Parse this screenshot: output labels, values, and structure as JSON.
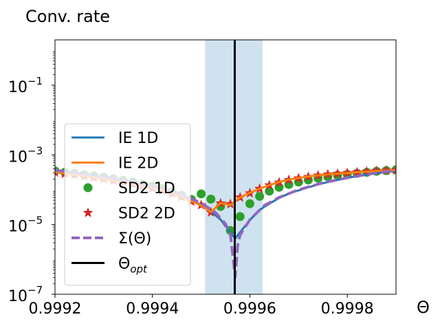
{
  "chart_data": {
    "type": "line",
    "title": "Conv. rate",
    "xlabel": "Θ",
    "ylabel": "",
    "xlim": [
      0.9992,
      0.9999
    ],
    "ylim_log10": [
      -7,
      0.3
    ],
    "yscale": "log",
    "x_ticks": [
      {
        "value": 0.9992,
        "label": "0.9992"
      },
      {
        "value": 0.9994,
        "label": "0.9994"
      },
      {
        "value": 0.9996,
        "label": "0.9996"
      },
      {
        "value": 0.9998,
        "label": "0.9998"
      }
    ],
    "y_ticks": [
      {
        "exp": -1,
        "base": "10",
        "sup": "−1"
      },
      {
        "exp": -3,
        "base": "10",
        "sup": "−3"
      },
      {
        "exp": -5,
        "base": "10",
        "sup": "−5"
      },
      {
        "exp": -7,
        "base": "10",
        "sup": "−7"
      }
    ],
    "shaded_region": {
      "x0": 0.999508,
      "x1": 0.999626,
      "color": "#cfe2ef"
    },
    "vline": {
      "x": 0.999569,
      "color": "#000000"
    },
    "legend": {
      "position": "lower-left",
      "entries": [
        {
          "label": "IE 1D",
          "kind": "line",
          "color": "#1f77b4"
        },
        {
          "label": "IE 2D",
          "kind": "line",
          "color": "#ff7f0e"
        },
        {
          "label": "SD2 1D",
          "kind": "circle",
          "color": "#2ca02c"
        },
        {
          "label": "SD2 2D",
          "kind": "star",
          "color": "#d62728"
        },
        {
          "label": "Σ(Θ)",
          "kind": "dashed",
          "color": "#9467bd"
        },
        {
          "label": "Θopt",
          "base": "Θ",
          "sub": "opt",
          "kind": "line",
          "color": "#000000"
        }
      ]
    },
    "series": [
      {
        "name": "IE 1D",
        "style": "line",
        "color": "#1f77b4",
        "x": [
          0.9992,
          0.99922,
          0.99924,
          0.99926,
          0.99928,
          0.9993,
          0.99932,
          0.99934,
          0.99936,
          0.99938,
          0.9994,
          0.99942,
          0.99944,
          0.99946,
          0.99948,
          0.9995,
          0.99952,
          0.99954,
          0.99956,
          0.99957,
          0.99958,
          0.9996,
          0.99962,
          0.99964,
          0.99966,
          0.99968,
          0.9997,
          0.99972,
          0.99974,
          0.99976,
          0.99978,
          0.9998,
          0.99982,
          0.99984,
          0.99986,
          0.99988,
          0.9999
        ],
        "log10y": [
          -3.45,
          -3.48,
          -3.52,
          -3.55,
          -3.59,
          -3.63,
          -3.67,
          -3.72,
          -3.77,
          -3.83,
          -3.89,
          -3.97,
          -4.05,
          -4.15,
          -4.28,
          -4.44,
          -4.62,
          -4.86,
          -5.23,
          -5.4,
          -5.22,
          -4.87,
          -4.58,
          -4.4,
          -4.24,
          -4.11,
          -4.02,
          -3.93,
          -3.85,
          -3.78,
          -3.72,
          -3.66,
          -3.61,
          -3.57,
          -3.53,
          -3.49,
          -3.46
        ]
      },
      {
        "name": "IE 2D",
        "style": "line",
        "color": "#ff7f0e",
        "x": [
          0.9992,
          0.99922,
          0.99924,
          0.99926,
          0.99928,
          0.9993,
          0.99932,
          0.99934,
          0.99936,
          0.99938,
          0.9994,
          0.99942,
          0.99944,
          0.99946,
          0.99948,
          0.9995,
          0.99952,
          0.99954,
          0.99956,
          0.99958,
          0.9996,
          0.99962,
          0.99964,
          0.99966,
          0.99968,
          0.9997,
          0.99972,
          0.99974,
          0.99976,
          0.99978,
          0.9998,
          0.99982,
          0.99984,
          0.99986,
          0.99988,
          0.9999
        ],
        "log10y": [
          -3.5,
          -3.53,
          -3.57,
          -3.61,
          -3.65,
          -3.69,
          -3.74,
          -3.78,
          -3.83,
          -3.89,
          -3.95,
          -4.02,
          -4.1,
          -4.2,
          -4.33,
          -4.45,
          -4.64,
          -4.38,
          -4.44,
          -4.22,
          -4.09,
          -3.97,
          -3.87,
          -3.78,
          -3.71,
          -3.66,
          -3.62,
          -3.59,
          -3.56,
          -3.54,
          -3.52,
          -3.5,
          -3.48,
          -3.46,
          -3.45,
          -3.44
        ]
      },
      {
        "name": "SD2 1D",
        "style": "circle",
        "color": "#2ca02c",
        "x": [
          0.9992,
          0.99922,
          0.99924,
          0.99926,
          0.99928,
          0.9993,
          0.99932,
          0.99934,
          0.99936,
          0.99938,
          0.9994,
          0.99942,
          0.99944,
          0.99946,
          0.99948,
          0.9995,
          0.99952,
          0.99954,
          0.99956,
          0.99958,
          0.9996,
          0.99962,
          0.99964,
          0.99966,
          0.99968,
          0.9997,
          0.99972,
          0.99974,
          0.99976,
          0.99978,
          0.9998,
          0.99982,
          0.99984,
          0.99986,
          0.99988,
          0.9999
        ],
        "log10y": [
          -3.46,
          -3.5,
          -3.53,
          -3.57,
          -3.6,
          -3.64,
          -3.69,
          -3.73,
          -3.78,
          -3.84,
          -3.9,
          -3.97,
          -4.06,
          -4.16,
          -4.28,
          -4.12,
          -4.27,
          -4.48,
          -5.17,
          -4.77,
          -4.4,
          -4.19,
          -4.04,
          -3.93,
          -3.85,
          -3.78,
          -3.72,
          -3.67,
          -3.63,
          -3.59,
          -3.56,
          -3.53,
          -3.5,
          -3.47,
          -3.45,
          -3.43
        ]
      },
      {
        "name": "SD2 2D",
        "style": "star",
        "color": "#d62728",
        "x": [
          0.9992,
          0.99922,
          0.99924,
          0.99926,
          0.99928,
          0.9993,
          0.99932,
          0.99934,
          0.99936,
          0.99938,
          0.9994,
          0.99942,
          0.99944,
          0.99946,
          0.99948,
          0.9995,
          0.99952,
          0.99954,
          0.99956,
          0.99958,
          0.9996,
          0.99962,
          0.99964,
          0.99966,
          0.99968,
          0.9997,
          0.99972,
          0.99974,
          0.99976,
          0.99978,
          0.9998,
          0.99982,
          0.99984,
          0.99986,
          0.99988,
          0.9999
        ],
        "log10y": [
          -3.5,
          -3.54,
          -3.57,
          -3.61,
          -3.65,
          -3.69,
          -3.74,
          -3.78,
          -3.84,
          -3.89,
          -3.96,
          -4.03,
          -4.11,
          -4.21,
          -4.34,
          -4.44,
          -4.65,
          -4.39,
          -4.41,
          -4.22,
          -4.1,
          -3.97,
          -3.87,
          -3.79,
          -3.72,
          -3.67,
          -3.63,
          -3.59,
          -3.56,
          -3.54,
          -3.52,
          -3.5,
          -3.48,
          -3.46,
          -3.45,
          -3.44
        ]
      },
      {
        "name": "Σ(Θ)",
        "style": "dashed",
        "color": "#9467bd",
        "x": [
          0.9992,
          0.99925,
          0.9993,
          0.99935,
          0.9994,
          0.99945,
          0.9995,
          0.99953,
          0.99955,
          0.99956,
          0.99957,
          0.999575,
          0.99958,
          0.9996,
          0.99963,
          0.99966,
          0.9997,
          0.99975,
          0.9998,
          0.99985,
          0.9999
        ],
        "log10y": [
          -3.44,
          -3.53,
          -3.63,
          -3.75,
          -3.89,
          -4.08,
          -4.38,
          -4.66,
          -4.98,
          -5.28,
          -6.5,
          -5.6,
          -5.3,
          -4.86,
          -4.45,
          -4.22,
          -4.0,
          -3.8,
          -3.66,
          -3.54,
          -3.44
        ]
      }
    ]
  }
}
